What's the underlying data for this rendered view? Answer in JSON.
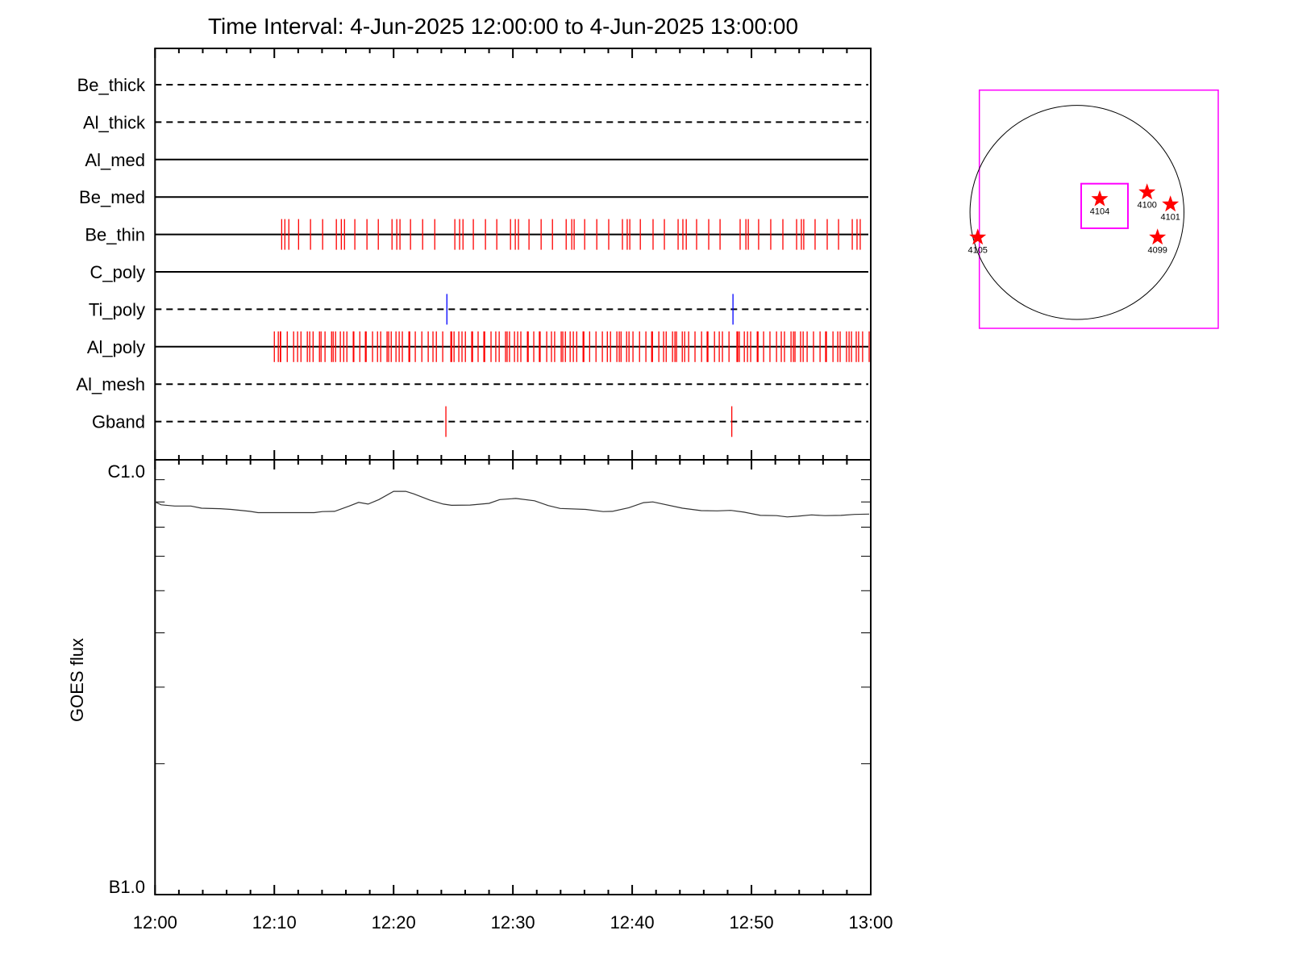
{
  "title": "Time Interval:  4-Jun-2025 12:00:00 to  4-Jun-2025 13:00:00",
  "colors": {
    "frame": "#000000",
    "obs_tick": "#ff0000",
    "ti_poly_tick": "#0000ff",
    "goes_line": "#333333",
    "fov_box": "#ff00ff",
    "region_star": "#ff0000",
    "disk": "#000000"
  },
  "chart_data": [
    {
      "type": "timeline",
      "x_range": [
        "12:00:00",
        "13:00:00"
      ],
      "rows": [
        {
          "name": "Be_thick",
          "line_style": "dashed",
          "tick_color": "#ff0000",
          "ticks": []
        },
        {
          "name": "Al_thick",
          "line_style": "dashed",
          "tick_color": "#ff0000",
          "ticks": []
        },
        {
          "name": "Al_med",
          "line_style": "solid",
          "tick_color": "#ff0000",
          "ticks": []
        },
        {
          "name": "Be_med",
          "line_style": "solid",
          "tick_color": "#ff0000",
          "ticks": []
        },
        {
          "name": "Be_thin",
          "line_style": "solid",
          "tick_color": "#ff0000",
          "ticks": [
            "12:10:37",
            "12:10:53",
            "12:11:13",
            "12:12:02",
            "12:13:02",
            "12:14:03",
            "12:15:12",
            "12:15:37",
            "12:15:53",
            "12:16:45",
            "12:17:46",
            "12:18:43",
            "12:19:52",
            "12:20:16",
            "12:20:32",
            "12:21:25",
            "12:22:26",
            "12:23:27",
            "12:25:08",
            "12:25:32",
            "12:25:49",
            "12:26:41",
            "12:27:42",
            "12:28:39",
            "12:29:48",
            "12:30:12",
            "12:30:28",
            "12:31:21",
            "12:32:22",
            "12:33:19",
            "12:34:28",
            "12:34:56",
            "12:35:08",
            "12:36:01",
            "12:37:02",
            "12:38:02",
            "12:39:11",
            "12:39:35",
            "12:39:48",
            "12:40:41",
            "12:41:45",
            "12:42:42",
            "12:43:51",
            "12:44:15",
            "12:44:32",
            "12:45:24",
            "12:46:25",
            "12:47:22",
            "12:49:03",
            "12:49:32",
            "12:49:44",
            "12:50:36",
            "12:51:37",
            "12:52:38",
            "12:53:47",
            "12:54:11",
            "12:54:23",
            "12:55:20",
            "12:56:21",
            "12:57:18",
            "12:58:27",
            "12:58:51",
            "12:59:07"
          ]
        },
        {
          "name": "C_poly",
          "line_style": "solid",
          "tick_color": "#ff0000",
          "ticks": []
        },
        {
          "name": "Ti_poly",
          "line_style": "dashed",
          "tick_color": "#0000ff",
          "ticks": [
            "12:24:28",
            "12:48:27"
          ]
        },
        {
          "name": "Al_poly",
          "line_style": "solid",
          "tick_color": "#ff0000",
          "ticks": [
            "12:10:00",
            "12:10:20",
            "12:10:30",
            "12:10:32",
            "12:11:05",
            "12:11:37",
            "12:11:57",
            "12:12:14",
            "12:12:46",
            "12:12:58",
            "12:13:15",
            "12:13:47",
            "12:13:55",
            "12:14:15",
            "12:14:48",
            "12:14:56",
            "12:15:08",
            "12:15:32",
            "12:15:49",
            "12:16:05",
            "12:16:37",
            "12:16:40",
            "12:17:10",
            "12:17:38",
            "12:17:42",
            "12:18:14",
            "12:18:39",
            "12:18:55",
            "12:19:27",
            "12:19:35",
            "12:19:48",
            "12:20:12",
            "12:20:28",
            "12:20:44",
            "12:21:17",
            "12:21:21",
            "12:21:49",
            "12:22:22",
            "12:22:54",
            "12:23:18",
            "12:23:35",
            "12:24:07",
            "12:24:48",
            "12:24:52",
            "12:25:04",
            "12:25:28",
            "12:25:44",
            "12:26:01",
            "12:26:33",
            "12:26:37",
            "12:27:05",
            "12:27:34",
            "12:27:38",
            "12:28:10",
            "12:28:34",
            "12:28:51",
            "12:29:23",
            "12:29:31",
            "12:29:43",
            "12:30:08",
            "12:30:24",
            "12:30:40",
            "12:31:13",
            "12:31:17",
            "12:31:45",
            "12:32:13",
            "12:32:17",
            "12:32:50",
            "12:33:14",
            "12:33:30",
            "12:34:03",
            "12:34:11",
            "12:34:24",
            "12:34:48",
            "12:35:04",
            "12:35:21",
            "12:35:53",
            "12:35:57",
            "12:36:26",
            "12:36:58",
            "12:37:30",
            "12:37:55",
            "12:38:11",
            "12:38:43",
            "12:38:55",
            "12:39:04",
            "12:39:32",
            "12:39:44",
            "12:40:04",
            "12:40:37",
            "12:41:09",
            "12:41:38",
            "12:41:42",
            "12:42:14",
            "12:42:38",
            "12:42:51",
            "12:43:23",
            "12:43:35",
            "12:43:43",
            "12:44:12",
            "12:44:24",
            "12:44:44",
            "12:45:16",
            "12:45:49",
            "12:46:17",
            "12:46:21",
            "12:46:54",
            "12:47:18",
            "12:47:34",
            "12:48:07",
            "12:48:47",
            "12:48:51",
            "12:48:59",
            "12:49:24",
            "12:49:40",
            "12:49:56",
            "12:50:29",
            "12:50:33",
            "12:51:01",
            "12:51:33",
            "12:52:06",
            "12:52:30",
            "12:52:46",
            "12:53:19",
            "12:53:31",
            "12:53:39",
            "12:54:07",
            "12:54:20",
            "12:54:40",
            "12:55:12",
            "12:55:45",
            "12:56:13",
            "12:56:17",
            "12:56:50",
            "12:57:14",
            "12:57:26",
            "12:57:58",
            "12:58:11",
            "12:58:23",
            "12:58:47",
            "12:58:59",
            "12:59:19",
            "12:59:52"
          ]
        },
        {
          "name": "Al_mesh",
          "line_style": "dashed",
          "tick_color": "#ff0000",
          "ticks": []
        },
        {
          "name": "Gband",
          "line_style": "dashed",
          "tick_color": "#ff0000",
          "ticks": [
            "12:24:23",
            "12:48:21"
          ]
        }
      ]
    },
    {
      "type": "line",
      "ylabel": "GOES flux",
      "yscale": "log",
      "ylim": [
        1e-07,
        1e-06
      ],
      "ytick_labels": [
        {
          "label": "C1.0",
          "value": 1e-06
        },
        {
          "label": "B1.0",
          "value": 1e-07
        }
      ],
      "y_minor_ticks": [
        2e-07,
        3e-07,
        4e-07,
        5e-07,
        6e-07,
        7e-07,
        8e-07,
        9e-07
      ],
      "x_range": [
        "12:00:00",
        "13:00:00"
      ],
      "xtick_labels": [
        "12:00",
        "12:10",
        "12:20",
        "12:30",
        "12:40",
        "12:50",
        "13:00"
      ],
      "x_minor_step_minutes": 2,
      "series": [
        {
          "x": [
            "12:00:00",
            "12:00:31",
            "12:01:39",
            "12:03:00",
            "12:03:54",
            "12:05:28",
            "12:06:23",
            "12:07:57",
            "12:08:38",
            "12:13:21",
            "12:14:02",
            "12:15:03",
            "12:16:17",
            "12:17:04",
            "12:17:52",
            "12:18:46",
            "12:20:00",
            "12:21:01",
            "12:21:41",
            "12:23:02",
            "12:24:10",
            "12:24:51",
            "12:26:25",
            "12:28:00",
            "12:28:54",
            "12:30:15",
            "12:31:49",
            "12:32:57",
            "12:33:58",
            "12:36:06",
            "12:37:34",
            "12:38:21",
            "12:39:43",
            "12:40:57",
            "12:41:44",
            "12:44:13",
            "12:45:47",
            "12:47:08",
            "12:48:16",
            "12:49:23",
            "12:50:45",
            "12:52:06",
            "12:53:00",
            "12:53:54",
            "12:55:02",
            "12:56:09",
            "12:57:30",
            "12:58:38",
            "12:59:52"
          ],
          "y": [
            8e-07,
            7.88e-07,
            7.83e-07,
            7.83e-07,
            7.74e-07,
            7.72e-07,
            7.69e-07,
            7.61e-07,
            7.56e-07,
            7.56e-07,
            7.6e-07,
            7.61e-07,
            7.83e-07,
            7.98e-07,
            7.91e-07,
            8.1e-07,
            8.46e-07,
            8.46e-07,
            8.35e-07,
            8.08e-07,
            7.91e-07,
            7.86e-07,
            7.87e-07,
            7.94e-07,
            8.1e-07,
            8.15e-07,
            8.05e-07,
            7.85e-07,
            7.73e-07,
            7.69e-07,
            7.6e-07,
            7.61e-07,
            7.76e-07,
            7.97e-07,
            8e-07,
            7.74e-07,
            7.64e-07,
            7.63e-07,
            7.65e-07,
            7.58e-07,
            7.45e-07,
            7.44e-07,
            7.39e-07,
            7.42e-07,
            7.47e-07,
            7.44e-07,
            7.45e-07,
            7.49e-07,
            7.5e-07
          ]
        }
      ]
    },
    {
      "type": "map",
      "regions": [
        {
          "label": "4104",
          "in_fov_box": true
        },
        {
          "label": "4100",
          "in_fov_box": false
        },
        {
          "label": "4101",
          "in_fov_box": false
        },
        {
          "label": "4099",
          "in_fov_box": false
        },
        {
          "label": "4105",
          "in_fov_box": false
        }
      ]
    }
  ]
}
